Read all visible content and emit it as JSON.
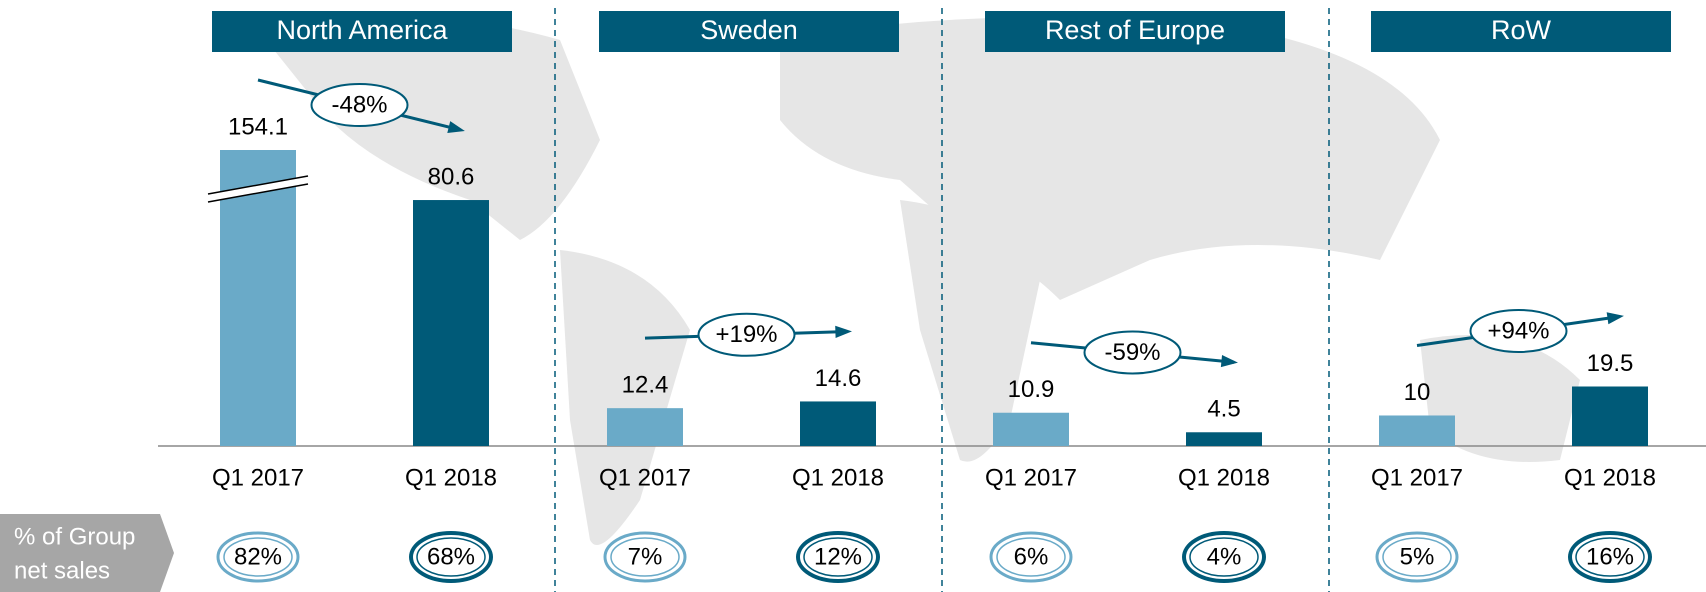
{
  "share_label": [
    "% of Group",
    "net sales"
  ],
  "chart_data": [
    {
      "type": "bar",
      "title": "North America",
      "categories": [
        "Q1 2017",
        "Q1 2018"
      ],
      "values": [
        154.1,
        80.6
      ],
      "colors": [
        "#6aaac8",
        "#005a78"
      ],
      "ylim": [
        0,
        97
      ],
      "axis_break": true,
      "change": {
        "value": -48,
        "label": "-48%"
      },
      "share": {
        "values": [
          82,
          68
        ],
        "value_labels": [
          "82%",
          "68%"
        ]
      }
    },
    {
      "type": "bar",
      "title": "Sweden",
      "categories": [
        "Q1 2017",
        "Q1 2018"
      ],
      "values": [
        12.4,
        14.6
      ],
      "colors": [
        "#6aaac8",
        "#005a78"
      ],
      "ylim": [
        0,
        97
      ],
      "change": {
        "value": 19,
        "label": "+19%"
      },
      "share": {
        "values": [
          7,
          12
        ],
        "value_labels": [
          "7%",
          "12%"
        ]
      }
    },
    {
      "type": "bar",
      "title": "Rest of Europe",
      "categories": [
        "Q1 2017",
        "Q1 2018"
      ],
      "values": [
        10.9,
        4.5
      ],
      "colors": [
        "#6aaac8",
        "#005a78"
      ],
      "ylim": [
        0,
        97
      ],
      "change": {
        "value": -59,
        "label": "-59%"
      },
      "share": {
        "values": [
          6,
          4
        ],
        "value_labels": [
          "6%",
          "4%"
        ]
      }
    },
    {
      "type": "bar",
      "title": "RoW",
      "categories": [
        "Q1 2017",
        "Q1 2018"
      ],
      "values": [
        10.0,
        19.5
      ],
      "colors": [
        "#6aaac8",
        "#005a78"
      ],
      "ylim": [
        0,
        97
      ],
      "change": {
        "value": 94,
        "label": "+94%"
      },
      "share": {
        "values": [
          5,
          16
        ],
        "value_labels": [
          "5%",
          "16%"
        ]
      }
    }
  ]
}
